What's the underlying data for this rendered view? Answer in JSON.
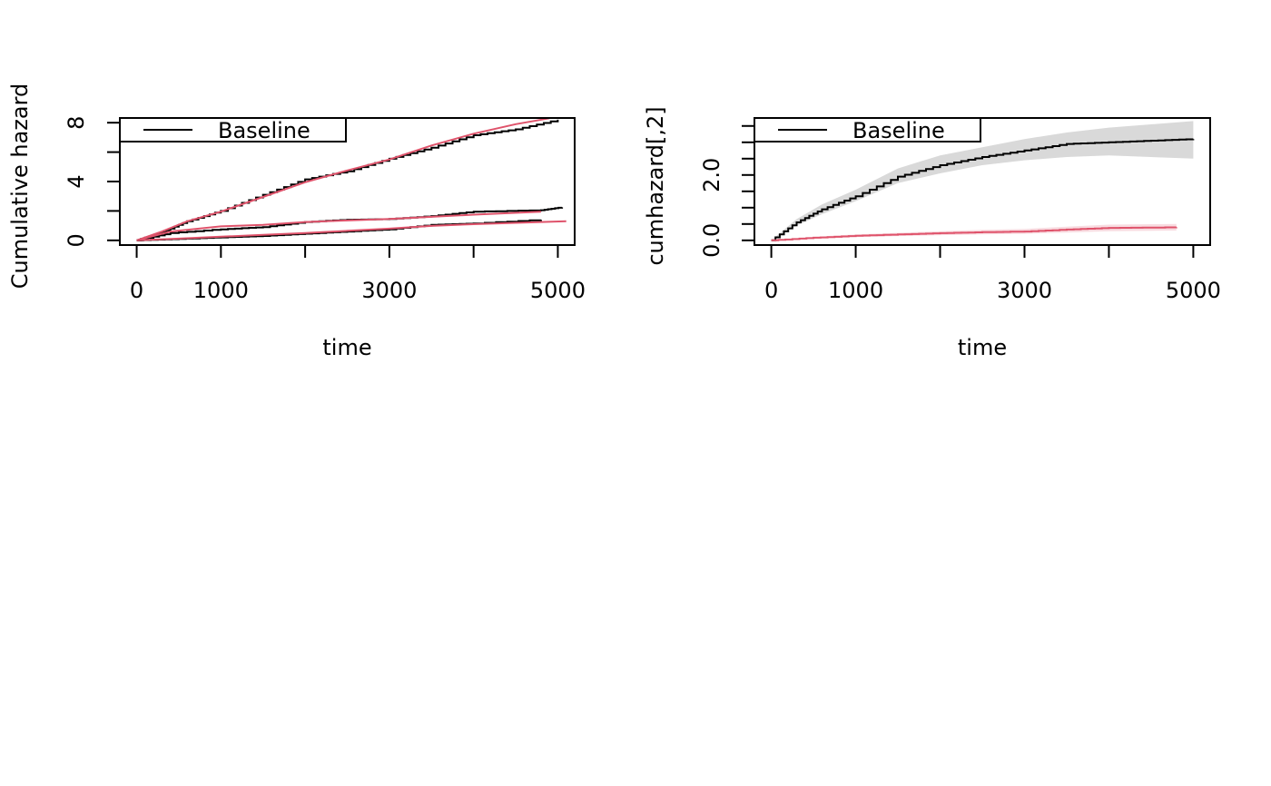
{
  "chart_data": [
    {
      "type": "line",
      "xlabel": "time",
      "ylabel": "Cumulative hazard",
      "xlim": [
        0,
        5000
      ],
      "ylim": [
        0,
        8
      ],
      "x_ticks": [
        0,
        1000,
        2000,
        3000,
        4000,
        5000
      ],
      "x_tick_labels": [
        "0",
        "1000",
        "",
        "3000",
        "",
        "5000"
      ],
      "y_ticks": [
        0,
        2,
        4,
        6,
        8
      ],
      "y_tick_labels": [
        "0",
        "",
        "4",
        "",
        "8"
      ],
      "legend": {
        "position": "top-left",
        "entries": [
          {
            "label": "Baseline",
            "color": "#000000"
          }
        ]
      },
      "series": [
        {
          "color": "#000000",
          "step": true,
          "points": [
            [
              0,
              0
            ],
            [
              300,
              0.55
            ],
            [
              600,
              1.3
            ],
            [
              1000,
              2.0
            ],
            [
              1500,
              3.1
            ],
            [
              2000,
              4.15
            ],
            [
              2500,
              4.7
            ],
            [
              3000,
              5.55
            ],
            [
              3500,
              6.3
            ],
            [
              4000,
              7.15
            ],
            [
              4500,
              7.55
            ],
            [
              5000,
              8.2
            ]
          ]
        },
        {
          "color": "#DF536B",
          "step": false,
          "points": [
            [
              0,
              0
            ],
            [
              300,
              0.6
            ],
            [
              600,
              1.3
            ],
            [
              1000,
              1.95
            ],
            [
              1500,
              2.95
            ],
            [
              2000,
              3.95
            ],
            [
              2500,
              4.75
            ],
            [
              3000,
              5.5
            ],
            [
              3500,
              6.45
            ],
            [
              4000,
              7.25
            ],
            [
              4500,
              7.9
            ],
            [
              4900,
              8.3
            ]
          ]
        },
        {
          "color": "#000000",
          "step": true,
          "points": [
            [
              0,
              0
            ],
            [
              400,
              0.5
            ],
            [
              1000,
              0.75
            ],
            [
              1500,
              0.9
            ],
            [
              2000,
              1.25
            ],
            [
              2500,
              1.4
            ],
            [
              3000,
              1.45
            ],
            [
              3500,
              1.65
            ],
            [
              4000,
              1.95
            ],
            [
              4800,
              2.05
            ],
            [
              5050,
              2.25
            ]
          ]
        },
        {
          "color": "#DF536B",
          "step": false,
          "points": [
            [
              0,
              0
            ],
            [
              400,
              0.6
            ],
            [
              1000,
              0.95
            ],
            [
              1500,
              1.05
            ],
            [
              2000,
              1.25
            ],
            [
              2500,
              1.35
            ],
            [
              3000,
              1.45
            ],
            [
              3500,
              1.6
            ],
            [
              4000,
              1.75
            ],
            [
              4800,
              1.95
            ]
          ]
        },
        {
          "color": "#000000",
          "step": true,
          "points": [
            [
              0,
              0
            ],
            [
              500,
              0.1
            ],
            [
              1000,
              0.2
            ],
            [
              1500,
              0.3
            ],
            [
              2000,
              0.45
            ],
            [
              2500,
              0.6
            ],
            [
              3000,
              0.75
            ],
            [
              3500,
              1.05
            ],
            [
              4000,
              1.15
            ],
            [
              4800,
              1.4
            ]
          ]
        },
        {
          "color": "#DF536B",
          "step": false,
          "points": [
            [
              0,
              0
            ],
            [
              500,
              0.12
            ],
            [
              1000,
              0.25
            ],
            [
              1500,
              0.38
            ],
            [
              2000,
              0.5
            ],
            [
              2500,
              0.65
            ],
            [
              3000,
              0.8
            ],
            [
              3500,
              0.98
            ],
            [
              4000,
              1.1
            ],
            [
              5100,
              1.3
            ]
          ]
        }
      ]
    },
    {
      "type": "line",
      "xlabel": "time",
      "ylabel": "cumhazard[,2]",
      "xlim": [
        0,
        5000
      ],
      "ylim": [
        0,
        3.6
      ],
      "x_ticks": [
        0,
        1000,
        2000,
        3000,
        4000,
        5000
      ],
      "x_tick_labels": [
        "0",
        "1000",
        "",
        "3000",
        "",
        "5000"
      ],
      "y_ticks": [
        0,
        0.5,
        1.0,
        1.5,
        2.0,
        2.5,
        3.0,
        3.5
      ],
      "y_tick_labels": [
        "0.0",
        "",
        "",
        "",
        "2.0",
        "",
        "",
        ""
      ],
      "legend": {
        "position": "top-left",
        "entries": [
          {
            "label": "Baseline",
            "color": "#000000"
          }
        ]
      },
      "series": [
        {
          "color": "#000000",
          "step": true,
          "points": [
            [
              0,
              0
            ],
            [
              300,
              0.55
            ],
            [
              600,
              0.95
            ],
            [
              1000,
              1.35
            ],
            [
              1500,
              1.95
            ],
            [
              2000,
              2.3
            ],
            [
              2500,
              2.55
            ],
            [
              3000,
              2.75
            ],
            [
              3500,
              2.95
            ],
            [
              4000,
              3.0
            ],
            [
              4500,
              3.05
            ],
            [
              5000,
              3.1
            ]
          ],
          "band": {
            "color": "#D9D9D9",
            "lower": [
              0,
              0.45,
              0.8,
              1.2,
              1.75,
              2.05,
              2.3,
              2.45,
              2.55,
              2.6,
              2.55,
              2.5
            ],
            "upper": [
              0,
              0.65,
              1.1,
              1.55,
              2.2,
              2.6,
              2.85,
              3.1,
              3.3,
              3.45,
              3.55,
              3.65
            ]
          }
        },
        {
          "color": "#DF536B",
          "step": true,
          "points": [
            [
              0,
              0
            ],
            [
              500,
              0.08
            ],
            [
              1000,
              0.14
            ],
            [
              1500,
              0.18
            ],
            [
              2000,
              0.22
            ],
            [
              2500,
              0.25
            ],
            [
              3000,
              0.27
            ],
            [
              3500,
              0.33
            ],
            [
              4000,
              0.38
            ],
            [
              4800,
              0.4
            ]
          ],
          "band": {
            "color": "#F8DCE1",
            "lower": [
              0,
              0.05,
              0.1,
              0.13,
              0.16,
              0.18,
              0.2,
              0.24,
              0.28,
              0.3
            ],
            "upper": [
              0,
              0.11,
              0.18,
              0.23,
              0.28,
              0.32,
              0.35,
              0.42,
              0.48,
              0.5
            ]
          }
        }
      ]
    }
  ]
}
